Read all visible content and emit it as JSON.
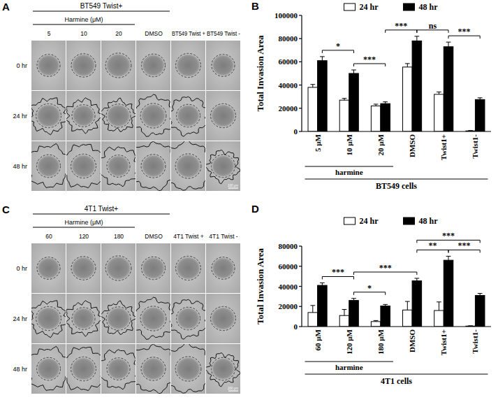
{
  "panels": [
    {
      "letter": "A",
      "top_label": "BT549 Twist+",
      "group_label": "Harmine (μM)",
      "columns": [
        "5",
        "10",
        "20",
        "DMSO",
        "BT549 Twist +",
        "BT549 Twist -"
      ],
      "rows": [
        "0 hr",
        "24 hr",
        "48 hr"
      ],
      "scale_bar": "100 μm"
    },
    {
      "letter": "C",
      "top_label": "4T1 Twist+",
      "group_label": "Harmine (μM)",
      "columns": [
        "60",
        "120",
        "180",
        "DMSO",
        "4T1 Twist +",
        "4T1 Twist -"
      ],
      "rows": [
        "0 hr",
        "24 hr",
        "48 hr"
      ],
      "scale_bar": "200 μm"
    }
  ],
  "chart_data": [
    {
      "letter": "B",
      "type": "bar",
      "y_label": "Total Invasion Area",
      "x_label": "BT549 cells",
      "categories": [
        "5 μM",
        "10 μM",
        "20 μM",
        "DMSO",
        "Twist1+",
        "Twist1-"
      ],
      "series": [
        {
          "name": "24 hr",
          "color": "#ffffff",
          "values": [
            38000,
            27000,
            22000,
            55500,
            32000,
            500
          ],
          "errors": [
            2500,
            1500,
            1500,
            3000,
            2000,
            300
          ]
        },
        {
          "name": "48 hr",
          "color": "#000000",
          "values": [
            61000,
            50000,
            24000,
            78000,
            73000,
            27500
          ],
          "errors": [
            3500,
            3000,
            1500,
            4000,
            4000,
            1500
          ]
        }
      ],
      "ylim": [
        0,
        100000
      ],
      "yticks": [
        0,
        20000,
        40000,
        60000,
        80000,
        100000
      ],
      "legend": "top",
      "group": {
        "label": "harmine",
        "members": [
          "5 μM",
          "10 μM",
          "20 μM"
        ]
      },
      "significance": [
        {
          "between": [
            "5 μM",
            "10 μM"
          ],
          "label": "*"
        },
        {
          "between": [
            "10 μM",
            "20 μM"
          ],
          "label": "***"
        },
        {
          "between": [
            "20 μM",
            "DMSO"
          ],
          "label": "***"
        },
        {
          "between": [
            "DMSO",
            "Twist1+"
          ],
          "label": "ns"
        },
        {
          "between": [
            "Twist1+",
            "Twist1-"
          ],
          "label": "***"
        }
      ]
    },
    {
      "letter": "D",
      "type": "bar",
      "y_label": "Total Invasion Area",
      "x_label": "4T1 cells",
      "categories": [
        "60 μM",
        "120 μM",
        "180 μM",
        "DMSO",
        "Twist1+",
        "Twist1-"
      ],
      "series": [
        {
          "name": "24 hr",
          "color": "#ffffff",
          "values": [
            14000,
            11000,
            5000,
            16500,
            16000,
            500
          ],
          "errors": [
            7000,
            6000,
            1000,
            8500,
            8500,
            300
          ]
        },
        {
          "name": "48 hr",
          "color": "#000000",
          "values": [
            41000,
            26000,
            20500,
            45500,
            66000,
            31000
          ],
          "errors": [
            2500,
            2000,
            1500,
            2500,
            4000,
            2000
          ]
        }
      ],
      "ylim": [
        0,
        80000
      ],
      "yticks": [
        0,
        20000,
        40000,
        60000,
        80000
      ],
      "legend": "top",
      "group": {
        "label": "harmine",
        "members": [
          "60 μM",
          "120 μM",
          "180 μM"
        ]
      },
      "significance": [
        {
          "between": [
            "60 μM",
            "120 μM"
          ],
          "label": "***"
        },
        {
          "between": [
            "120 μM",
            "180 μM"
          ],
          "label": "*"
        },
        {
          "between": [
            "120 μM",
            "DMSO"
          ],
          "label": "***"
        },
        {
          "between": [
            "DMSO",
            "Twist1+"
          ],
          "label": "**"
        },
        {
          "between": [
            "Twist1+",
            "Twist1-"
          ],
          "label": "***"
        },
        {
          "between": [
            "DMSO",
            "Twist1-"
          ],
          "label": "***"
        }
      ]
    }
  ]
}
